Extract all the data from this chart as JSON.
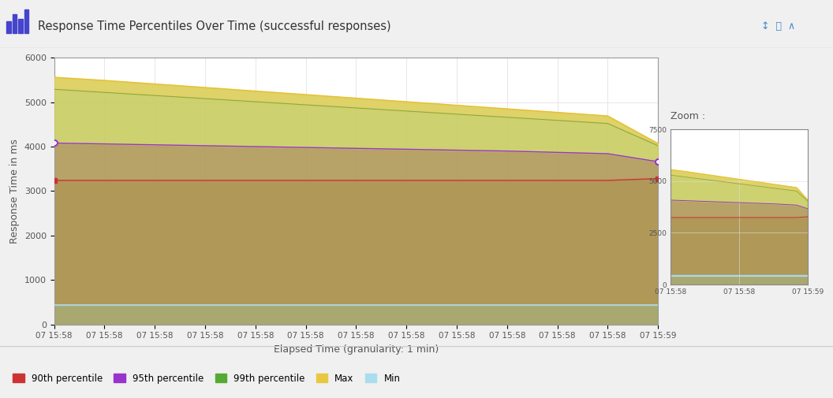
{
  "title": "Response Time Percentiles Over Time (successful responses)",
  "xlabel": "Elapsed Time (granularity: 1 min)",
  "ylabel": "Response Time in ms",
  "x_labels": [
    "07 15:58",
    "07 15:58",
    "07 15:58",
    "07 15:58",
    "07 15:58",
    "07 15:58",
    "07 15:58",
    "07 15:58",
    "07 15:58",
    "07 15:58",
    "07 15:58",
    "07 15:58",
    "07 15:59"
  ],
  "n_points": 13,
  "ylim": [
    0,
    6000
  ],
  "yticks": [
    0,
    1000,
    2000,
    3000,
    4000,
    5000,
    6000
  ],
  "series": {
    "max": [
      5560,
      5490,
      5410,
      5330,
      5250,
      5170,
      5090,
      5010,
      4930,
      4850,
      4770,
      4690,
      4070
    ],
    "p99": [
      5290,
      5220,
      5150,
      5080,
      5010,
      4940,
      4870,
      4800,
      4730,
      4660,
      4590,
      4520,
      4020
    ],
    "p95": [
      4080,
      4060,
      4040,
      4020,
      4000,
      3980,
      3960,
      3940,
      3920,
      3900,
      3870,
      3840,
      3660
    ],
    "p90": [
      3240,
      3240,
      3240,
      3240,
      3240,
      3240,
      3240,
      3240,
      3240,
      3240,
      3240,
      3240,
      3280
    ],
    "min": [
      440,
      440,
      440,
      440,
      440,
      440,
      440,
      440,
      440,
      440,
      440,
      440,
      440
    ]
  },
  "legend_items": [
    {
      "label": "90th percentile",
      "color": "#cc3333"
    },
    {
      "label": "95th percentile",
      "color": "#9933cc"
    },
    {
      "label": "99th percentile",
      "color": "#55aa33"
    },
    {
      "label": "Max",
      "color": "#e8c840"
    },
    {
      "label": "Min",
      "color": "#aaddee"
    }
  ],
  "zoom_ylim": [
    0,
    7500
  ],
  "zoom_yticks": [
    0,
    2500,
    5000,
    7500
  ],
  "zoom_x_labels": [
    "07 15:58",
    "07 15:58",
    "07 15:59"
  ],
  "header_bg": "#e8e8e8",
  "header_line_color": "#cccccc",
  "footer_bg": "#f0f0f0",
  "plot_area_bg": "#f0f0f0",
  "main_bg": "#ffffff",
  "fill_below_min": "#a8a870",
  "fill_min_p90": "#b09858",
  "fill_p90_p95": "#b09858",
  "fill_p95_p99": "#c8cc60",
  "fill_p99_max": "#ddd060",
  "fill_min_band": "#aaddee"
}
